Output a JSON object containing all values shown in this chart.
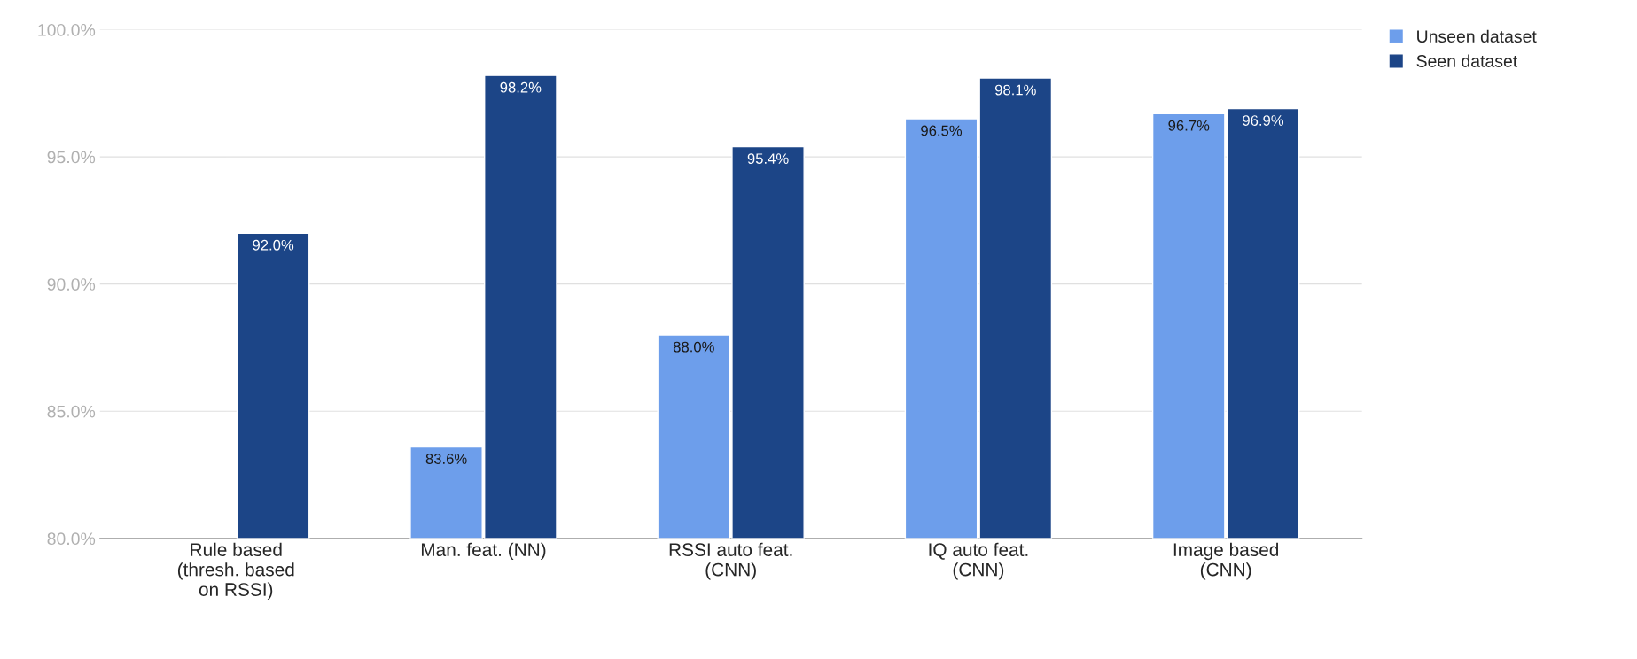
{
  "chart_data": {
    "type": "bar",
    "categories": [
      "Rule based\n(thresh. based\non RSSI)",
      "Man. feat. (NN)",
      "RSSI auto feat.\n(CNN)",
      "IQ auto feat.\n(CNN)",
      "Image based\n(CNN)"
    ],
    "series": [
      {
        "name": "Unseen dataset",
        "color": "#6d9eeb",
        "values": [
          null,
          83.6,
          88.0,
          96.5,
          96.7
        ],
        "value_labels": [
          null,
          "83.6%",
          "88.0%",
          "96.5%",
          "96.7%"
        ]
      },
      {
        "name": "Seen dataset",
        "color": "#1c4587",
        "values": [
          92.0,
          98.2,
          95.4,
          98.1,
          96.9
        ],
        "value_labels": [
          "92.0%",
          "98.2%",
          "95.4%",
          "98.1%",
          "96.9%"
        ]
      }
    ],
    "ylim": [
      80,
      100
    ],
    "yticks": [
      {
        "value": 80,
        "label": "80.0%"
      },
      {
        "value": 85,
        "label": "85.0%"
      },
      {
        "value": 90,
        "label": "90.0%"
      },
      {
        "value": 95,
        "label": "95.0%"
      },
      {
        "value": 100,
        "label": "100.0%"
      }
    ],
    "grid": "y",
    "legend": "top right"
  }
}
